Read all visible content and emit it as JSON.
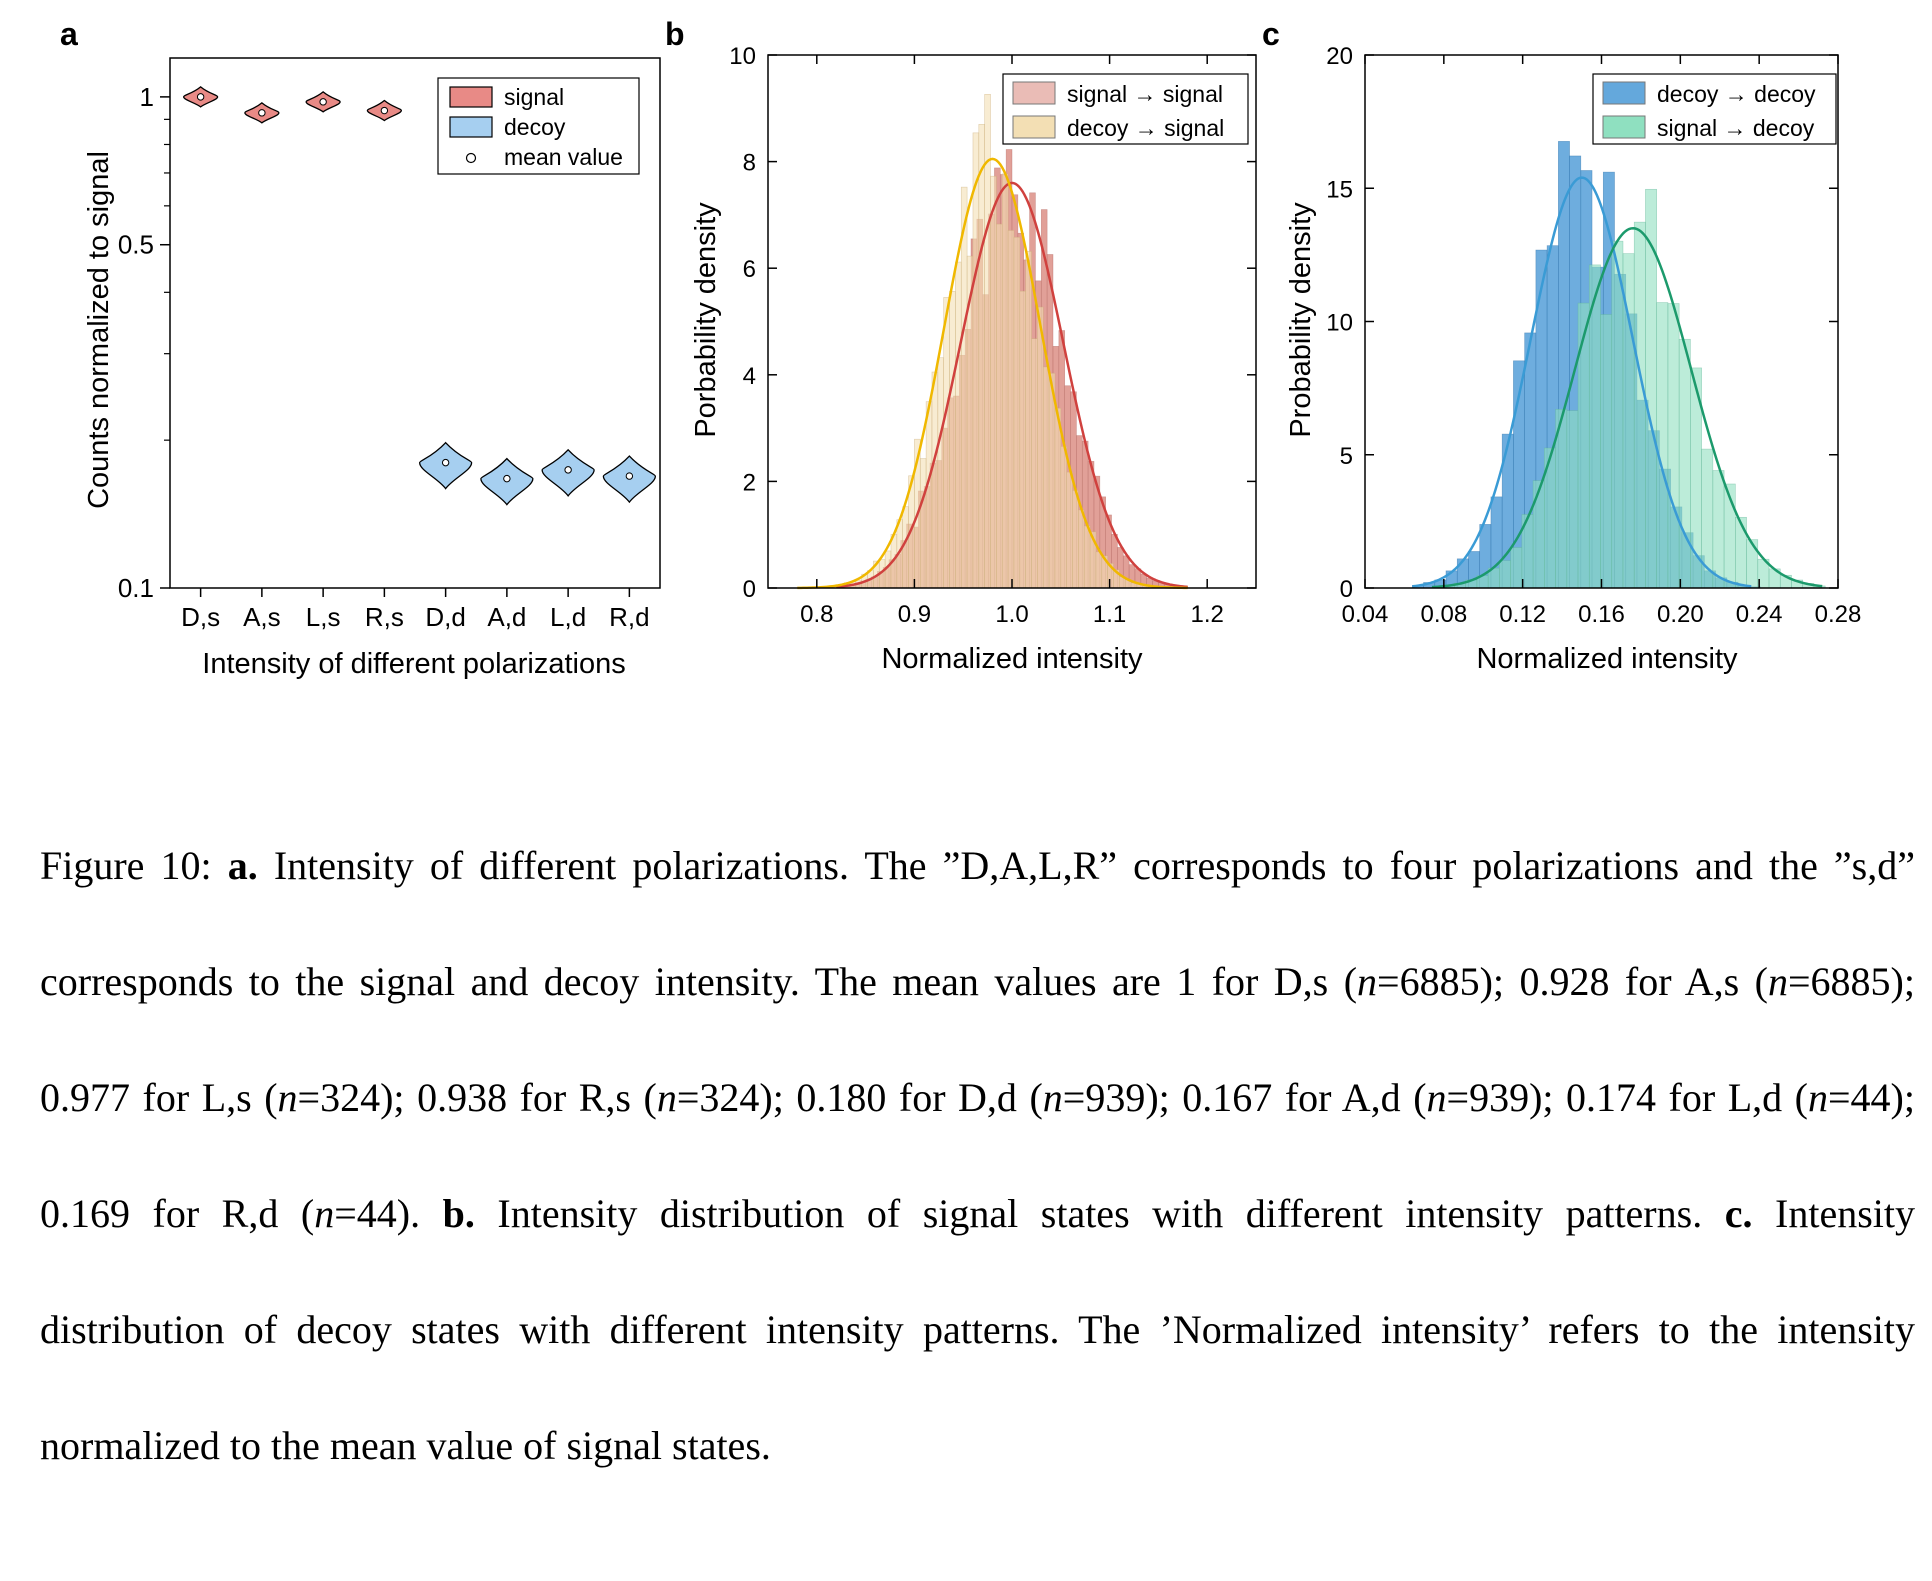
{
  "panels": {
    "a": {
      "letter": "a"
    },
    "b": {
      "letter": "b"
    },
    "c": {
      "letter": "c"
    }
  },
  "colors": {
    "signal_fill": "#e88a86",
    "decoy_fill": "#a6cff0",
    "red_curve": "#d0413e",
    "yellow_curve": "#f0b800",
    "blue_curve": "#3a9bd5",
    "green_curve": "#1c9a6c",
    "bar_signal_signal": "#dc8f86",
    "bar_decoy_signal": "#f3dfb4",
    "bar_decoy_decoy": "#3d92d3",
    "bar_signal_decoy": "#8fe0c0"
  },
  "chart_data": [
    {
      "type": "violin",
      "panel": "a",
      "ylabel": "Counts normalized to signal",
      "xlabel": "Intensity of different polarizations",
      "yscale": "log",
      "ylim": [
        0.1,
        1.2
      ],
      "yticks": [
        {
          "v": 1,
          "label": "1"
        },
        {
          "v": 0.5,
          "label": "0.5"
        },
        {
          "v": 0.1,
          "label": "0.1"
        }
      ],
      "yminor": [
        0.9,
        0.8,
        0.7,
        0.6,
        0.4,
        0.3,
        0.2
      ],
      "categories": [
        "D,s",
        "A,s",
        "L,s",
        "R,s",
        "D,d",
        "A,d",
        "L,d",
        "R,d"
      ],
      "means": [
        1.0,
        0.928,
        0.977,
        0.938,
        0.18,
        0.167,
        0.174,
        0.169
      ],
      "groups": [
        "signal",
        "signal",
        "signal",
        "signal",
        "decoy",
        "decoy",
        "decoy",
        "decoy"
      ],
      "legend": {
        "position": "top-right",
        "entries": [
          "signal",
          "decoy",
          "mean value"
        ]
      }
    },
    {
      "type": "histogram",
      "panel": "b",
      "xlabel": "Normalized intensity",
      "ylabel": "Porbability density",
      "xlim": [
        0.75,
        1.25
      ],
      "ylim": [
        0,
        10
      ],
      "xticks": [
        0.8,
        0.9,
        1.0,
        1.1,
        1.2
      ],
      "xtick_labels": [
        "0.8",
        "0.9",
        "1.0",
        "1.1",
        "1.2"
      ],
      "yticks": [
        0,
        2,
        4,
        6,
        8,
        10
      ],
      "ytick_labels": [
        "0",
        "2",
        "4",
        "6",
        "8",
        "10"
      ],
      "series": [
        {
          "name": "signal → signal",
          "fit": "gaussian",
          "mean": 1.0,
          "peak_density": 7.6,
          "range": [
            0.82,
            1.18
          ]
        },
        {
          "name": "decoy → signal",
          "fit": "gaussian",
          "mean": 0.98,
          "peak_density": 8.05,
          "range": [
            0.78,
            1.18
          ]
        }
      ],
      "legend": {
        "position": "top-right"
      }
    },
    {
      "type": "histogram",
      "panel": "c",
      "xlabel": "Normalized intensity",
      "ylabel": "Probability density",
      "xlim": [
        0.04,
        0.28
      ],
      "ylim": [
        0,
        20
      ],
      "xticks": [
        0.04,
        0.08,
        0.12,
        0.16,
        0.2,
        0.24,
        0.28
      ],
      "xtick_labels": [
        "0.04",
        "0.08",
        "0.12",
        "0.16",
        "0.20",
        "0.24",
        "0.28"
      ],
      "yticks": [
        0,
        5,
        10,
        15,
        20
      ],
      "ytick_labels": [
        "0",
        "5",
        "10",
        "15",
        "20"
      ],
      "series": [
        {
          "name": "decoy → decoy",
          "fit": "gaussian",
          "mean": 0.15,
          "peak_density": 15.4,
          "range": [
            0.064,
            0.236
          ]
        },
        {
          "name": "signal → decoy",
          "fit": "gaussian",
          "mean": 0.176,
          "peak_density": 13.5,
          "range": [
            0.074,
            0.272
          ]
        }
      ],
      "legend": {
        "position": "top-right"
      }
    }
  ],
  "caption": {
    "label": "Figure 10:",
    "a_label": "a.",
    "a_text_1": "Intensity of different polarizations. The ”D,A,L,R” corresponds to four polarizations and the ”s,d” corresponds to the signal and decoy intensity. The mean values are 1 for D,s (",
    "n": "n",
    "a_text_2": "=6885); 0.928 for A,s (",
    "a_text_3": "=6885); 0.977 for L,s (",
    "a_text_4": "=324); 0.938 for R,s (",
    "a_text_5": "=324); 0.180 for D,d (",
    "a_text_6": "=939); 0.167 for A,d (",
    "a_text_7": "=939); 0.174 for L,d (",
    "a_text_8": "=44); 0.169 for R,d (",
    "a_text_9": "=44). ",
    "b_label": "b.",
    "b_text": " Intensity distribution of signal states with different intensity patterns. ",
    "c_label": "c.",
    "c_text": " Intensity distribution of decoy states with different intensity patterns. The ’Normalized intensity’ refers to the intensity normalized to the mean value of signal states."
  }
}
